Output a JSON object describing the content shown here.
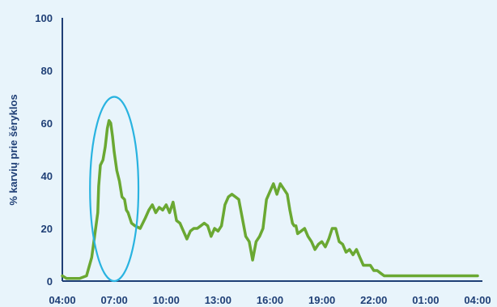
{
  "chart_data": {
    "type": "line",
    "title": "",
    "xlabel": "",
    "ylabel": "% karvių prie šėryklos",
    "ylim": [
      0,
      100
    ],
    "yticks": [
      "0",
      "20",
      "40",
      "60",
      "80",
      "100"
    ],
    "xticks": [
      "04:00",
      "07:00",
      "10:00",
      "13:00",
      "16:00",
      "19:00",
      "22:00",
      "01:00",
      "04:00"
    ],
    "xlim_hours": [
      0,
      24
    ],
    "grid": false,
    "legend": "none",
    "series": [
      {
        "color": "#6aa832",
        "x": [
          0.0,
          0.25,
          0.6,
          1.0,
          1.4,
          1.7,
          2.05,
          2.1,
          2.2,
          2.35,
          2.48,
          2.6,
          2.7,
          2.8,
          2.9,
          3.0,
          3.15,
          3.3,
          3.45,
          3.6,
          3.7,
          3.8,
          4.0,
          4.2,
          4.5,
          4.8,
          5.0,
          5.2,
          5.4,
          5.6,
          5.8,
          6.0,
          6.2,
          6.4,
          6.6,
          6.8,
          7.0,
          7.2,
          7.4,
          7.6,
          7.8,
          8.0,
          8.2,
          8.4,
          8.6,
          8.8,
          9.0,
          9.2,
          9.4,
          9.6,
          9.8,
          10.0,
          10.2,
          10.4,
          10.6,
          10.8,
          11.0,
          11.2,
          11.4,
          11.6,
          11.8,
          12.0,
          12.2,
          12.4,
          12.6,
          12.8,
          13.0,
          13.15,
          13.3,
          13.4,
          13.5,
          13.6,
          13.8,
          14.0,
          14.2,
          14.4,
          14.6,
          14.8,
          15.0,
          15.2,
          15.4,
          15.6,
          15.8,
          16.0,
          16.2,
          16.4,
          16.6,
          16.8,
          17.0,
          17.2,
          17.4,
          17.6,
          17.8,
          18.0,
          18.2,
          18.4,
          18.6,
          18.8,
          19.0,
          19.2,
          19.4,
          19.6,
          19.8,
          20.0,
          20.2,
          20.4,
          20.6,
          20.8,
          21.0,
          21.2,
          21.4,
          21.6,
          21.8,
          22.0,
          22.2,
          22.4,
          22.6,
          22.8,
          23.0,
          23.2,
          23.4,
          23.6,
          23.8,
          24.0
        ],
        "y": [
          2,
          1,
          1,
          1,
          2,
          9,
          26,
          36,
          44,
          46,
          51,
          58,
          61,
          60,
          55,
          49,
          42,
          38,
          32,
          31,
          27,
          26,
          22,
          21,
          20,
          24,
          27,
          29,
          26,
          28,
          27,
          29,
          26,
          30,
          23,
          22,
          19,
          16,
          19,
          20,
          20,
          21,
          22,
          21,
          17,
          20,
          19,
          21,
          29,
          32,
          33,
          32,
          31,
          24,
          17,
          15,
          8,
          15,
          17,
          20,
          31,
          34,
          37,
          33,
          37,
          35,
          33,
          27,
          22,
          21,
          21,
          18,
          19,
          20,
          17,
          15,
          12,
          14,
          15,
          13,
          16,
          20,
          20,
          15,
          14,
          11,
          12,
          10,
          12,
          9,
          6,
          6,
          6,
          4,
          4,
          3,
          2,
          2,
          2,
          2,
          2,
          2,
          2,
          2,
          2,
          2,
          2,
          2,
          2,
          2,
          2,
          2,
          2,
          2,
          2,
          2,
          2,
          2,
          2,
          2,
          2,
          2,
          2,
          2
        ]
      }
    ],
    "annotations": [
      {
        "type": "ellipse",
        "color": "#29b3e0",
        "center_x": 3.0,
        "center_y": 35,
        "radius_x_hours": 1.4,
        "radius_y": 35
      }
    ]
  }
}
